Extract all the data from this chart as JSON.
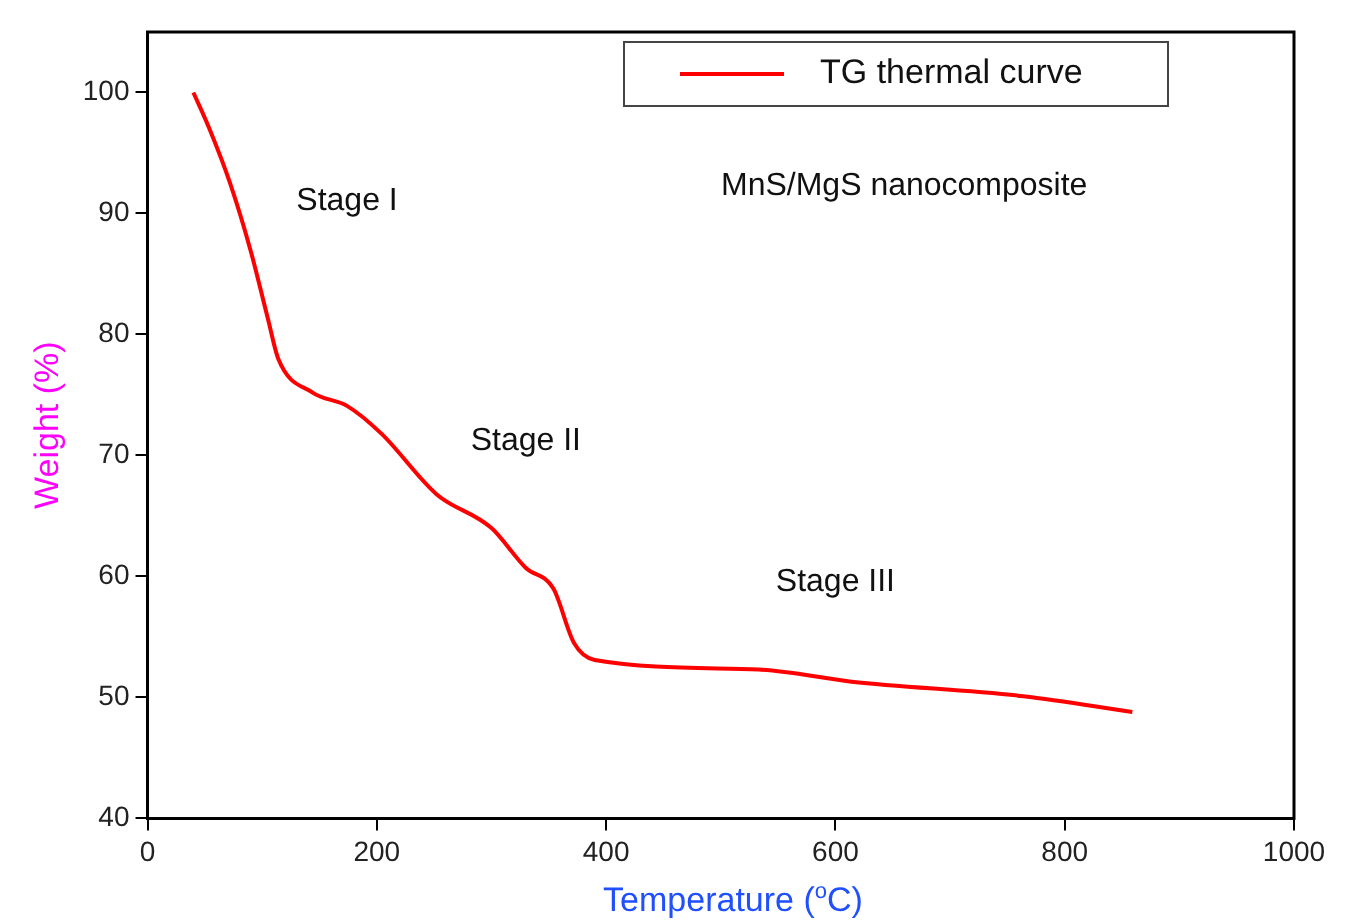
{
  "chart_data": {
    "type": "line",
    "xlabel": "Temperature ($^{o}$C)",
    "ylabel": "Weight (%)",
    "x": [
      40,
      54,
      72,
      90,
      105,
      114,
      144,
      174,
      204,
      252,
      300,
      330,
      354,
      372,
      390,
      533,
      614,
      764,
      859
    ],
    "series": [
      {
        "name": "TG thermal curve",
        "color": "#ff0000",
        "values": [
          100,
          97,
          92.5,
          86.9,
          81.3,
          78,
          75.2,
          74.1,
          71.8,
          66.8,
          64,
          60.7,
          59,
          54.5,
          53.1,
          52.3,
          51.3,
          50.1,
          48.8
        ]
      }
    ],
    "xlim": [
      0,
      1000
    ],
    "xticks": [
      0,
      200,
      400,
      600,
      800,
      1000
    ],
    "ylim": [
      40,
      105
    ],
    "yticks": [
      40,
      50,
      60,
      70,
      80,
      90,
      100
    ],
    "annotations": [
      "Stage I",
      "Stage II",
      "Stage III",
      "MnS/MgS nanocomposite"
    ],
    "legend": "top right",
    "grid": false,
    "marker": "none",
    "line_style": "solid"
  }
}
